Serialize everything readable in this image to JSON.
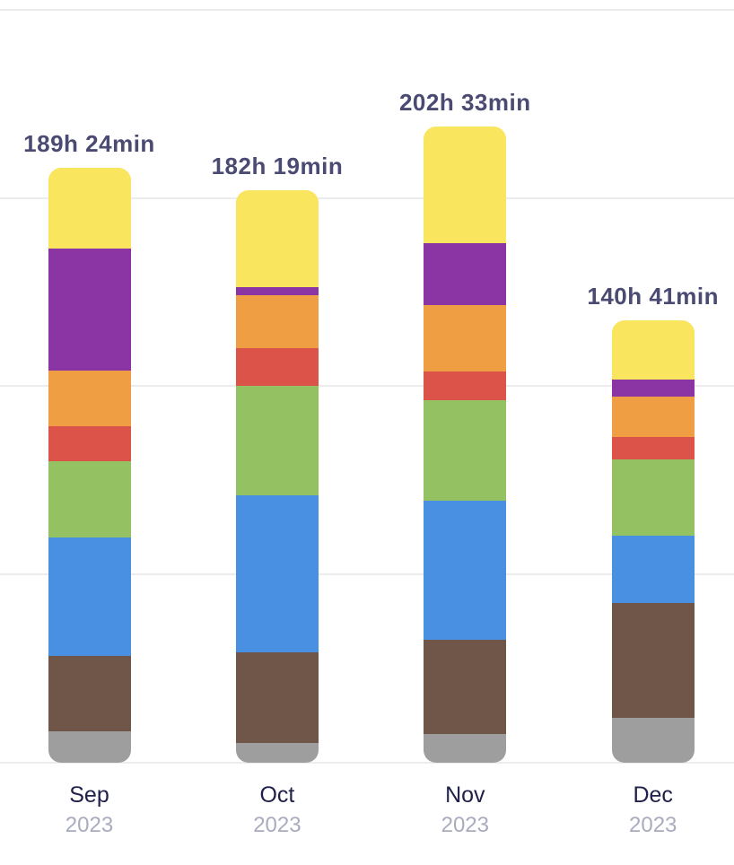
{
  "page": {
    "background_color": "#ffffff"
  },
  "styles": {
    "total_label_color": "#4A4A73",
    "month_label_color": "#20204A",
    "year_label_color": "#A9ABBE",
    "gridline_color": "#ECECEC"
  },
  "chart_data": {
    "type": "bar",
    "subtype": "stacked-vertical-bars",
    "title": "",
    "xlabel": "",
    "ylabel": "",
    "legend_position": "none",
    "grid": true,
    "ylim_hours": [
      0,
      240
    ],
    "gridline_interval_hours": 60,
    "categories": [
      "Sep",
      "Oct",
      "Nov",
      "Dec"
    ],
    "years": [
      "2023",
      "2023",
      "2023",
      "2023"
    ],
    "bar_total_labels": [
      "189h 24min",
      "182h 19min",
      "202h 33min",
      "140h 41min"
    ],
    "bar_totals_hours": [
      189.4,
      182.32,
      202.55,
      140.68
    ],
    "series": [
      {
        "name": "gray-segment",
        "color": "#9E9E9E",
        "values_hours": [
          10.0,
          6.3,
          9.2,
          14.3
        ]
      },
      {
        "name": "brown-segment",
        "color": "#6F5649",
        "values_hours": [
          24.1,
          28.9,
          30.1,
          36.7
        ]
      },
      {
        "name": "blue-segment",
        "color": "#4A90E2",
        "values_hours": [
          37.8,
          50.1,
          44.1,
          21.5
        ]
      },
      {
        "name": "green-segment",
        "color": "#94C162",
        "values_hours": [
          24.1,
          34.9,
          32.1,
          24.1
        ]
      },
      {
        "name": "red-segment",
        "color": "#DC5349",
        "values_hours": [
          11.2,
          12.0,
          9.2,
          7.2
        ]
      },
      {
        "name": "orange-segment",
        "color": "#EF9E43",
        "values_hours": [
          17.8,
          16.9,
          21.2,
          12.9
        ]
      },
      {
        "name": "purple-segment",
        "color": "#8B35A5",
        "values_hours": [
          38.9,
          2.6,
          19.8,
          5.4
        ]
      },
      {
        "name": "yellow-segment",
        "color": "#FAE55F",
        "values_hours": [
          25.8,
          30.9,
          37.2,
          18.9
        ]
      }
    ],
    "stack_order_bottom_to_top": [
      "gray-segment",
      "brown-segment",
      "blue-segment",
      "green-segment",
      "red-segment",
      "orange-segment",
      "purple-segment",
      "yellow-segment"
    ]
  }
}
